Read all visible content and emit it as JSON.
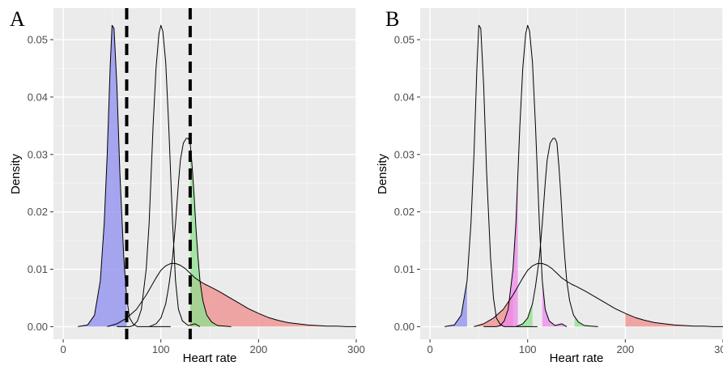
{
  "chart_data": [
    {
      "panel_label": "A",
      "type": "area",
      "xlabel": "Heart rate",
      "ylabel": "Density",
      "xlim": [
        -10,
        300
      ],
      "ylim": [
        -0.0022,
        0.0555
      ],
      "x_ticks": [
        "0",
        "100",
        "200",
        "300"
      ],
      "y_ticks": [
        "0.00",
        "0.01",
        "0.02",
        "0.03",
        "0.04",
        "0.05"
      ],
      "x_tick_values": [
        0,
        100,
        200,
        300
      ],
      "y_tick_values": [
        0,
        0.01,
        0.02,
        0.03,
        0.04,
        0.05
      ],
      "grid": true,
      "background": "#ebebeb",
      "curves": [
        {
          "x": [
            15,
            25,
            32,
            38,
            42,
            45,
            48,
            50,
            52,
            55,
            58,
            62,
            65,
            68,
            72,
            76,
            82,
            90,
            100,
            110
          ],
          "y": [
            0,
            0.0003,
            0.002,
            0.008,
            0.018,
            0.03,
            0.045,
            0.0525,
            0.052,
            0.042,
            0.027,
            0.012,
            0.005,
            0.0015,
            0.0004,
            0,
            0,
            0,
            0,
            0
          ]
        },
        {
          "x": [
            55,
            62,
            68,
            72,
            76,
            80,
            85,
            88,
            92,
            95,
            98,
            100,
            102,
            105,
            108,
            112,
            115,
            118,
            122,
            128,
            135,
            140
          ],
          "y": [
            0,
            0,
            0,
            0.0002,
            0.001,
            0.003,
            0.01,
            0.018,
            0.035,
            0.045,
            0.051,
            0.0525,
            0.0515,
            0.046,
            0.035,
            0.018,
            0.008,
            0.003,
            0.001,
            0.0002,
            0.0005,
            0
          ]
        },
        {
          "x": [
            88,
            95,
            100,
            105,
            108,
            112,
            115,
            118,
            120,
            123,
            126,
            128,
            130,
            132,
            134,
            136,
            138,
            140,
            143,
            147,
            152,
            158,
            165,
            172
          ],
          "y": [
            0,
            0.0005,
            0.0015,
            0.004,
            0.007,
            0.012,
            0.018,
            0.025,
            0.029,
            0.032,
            0.0328,
            0.0328,
            0.032,
            0.028,
            0.023,
            0.017,
            0.012,
            0.008,
            0.0045,
            0.002,
            0.0008,
            0.0002,
            0.0001,
            0
          ]
        },
        {
          "x": [
            45,
            55,
            65,
            75,
            85,
            95,
            100,
            105,
            110,
            115,
            120,
            125,
            130,
            135,
            140,
            145,
            150,
            160,
            170,
            180,
            190,
            200,
            210,
            220,
            230,
            240,
            250,
            260,
            270,
            280,
            290,
            300
          ],
          "y": [
            0,
            0.0005,
            0.0015,
            0.003,
            0.0055,
            0.0085,
            0.0098,
            0.0106,
            0.011,
            0.011,
            0.0107,
            0.0101,
            0.0093,
            0.0085,
            0.0079,
            0.0074,
            0.007,
            0.0061,
            0.0051,
            0.0041,
            0.0031,
            0.0023,
            0.0016,
            0.0011,
            0.0007,
            0.0005,
            0.0003,
            0.0002,
            0.0001,
            0.0001,
            0,
            0
          ]
        }
      ],
      "shaded": [
        {
          "curve": 0,
          "from": 15,
          "to": 65,
          "color": "#8c8cf0"
        },
        {
          "curve": 3,
          "from": 130,
          "to": 300,
          "color": "#f08c8c"
        },
        {
          "curve": 2,
          "from": 130,
          "to": 172,
          "color": "#8ce08c"
        }
      ],
      "cutoffs": [
        65,
        130
      ]
    },
    {
      "panel_label": "B",
      "type": "area",
      "xlabel": "Heart rate",
      "ylabel": "Density",
      "xlim": [
        -10,
        300
      ],
      "ylim": [
        -0.0022,
        0.0555
      ],
      "x_ticks": [
        "0",
        "100",
        "200",
        "300"
      ],
      "y_ticks": [
        "0.00",
        "0.01",
        "0.02",
        "0.03",
        "0.04",
        "0.05"
      ],
      "x_tick_values": [
        0,
        100,
        200,
        300
      ],
      "y_tick_values": [
        0,
        0.01,
        0.02,
        0.03,
        0.04,
        0.05
      ],
      "grid": true,
      "background": "#ebebeb",
      "curves": [
        {
          "x": [
            15,
            25,
            32,
            38,
            42,
            45,
            48,
            50,
            52,
            55,
            58,
            62,
            65,
            68,
            72,
            76,
            82,
            90,
            100,
            110
          ],
          "y": [
            0,
            0.0003,
            0.002,
            0.008,
            0.018,
            0.03,
            0.045,
            0.0525,
            0.052,
            0.042,
            0.027,
            0.012,
            0.005,
            0.0015,
            0.0004,
            0,
            0,
            0,
            0,
            0
          ]
        },
        {
          "x": [
            55,
            62,
            68,
            72,
            76,
            80,
            85,
            88,
            92,
            95,
            98,
            100,
            102,
            105,
            108,
            112,
            115,
            118,
            122,
            128,
            135,
            140
          ],
          "y": [
            0,
            0,
            0,
            0.0002,
            0.001,
            0.003,
            0.01,
            0.018,
            0.035,
            0.045,
            0.051,
            0.0525,
            0.0515,
            0.046,
            0.035,
            0.018,
            0.008,
            0.003,
            0.001,
            0.0002,
            0.0005,
            0
          ]
        },
        {
          "x": [
            88,
            95,
            100,
            105,
            108,
            112,
            115,
            118,
            120,
            123,
            126,
            128,
            130,
            132,
            134,
            136,
            138,
            140,
            143,
            147,
            152,
            158,
            165,
            172
          ],
          "y": [
            0,
            0.0005,
            0.0015,
            0.004,
            0.007,
            0.012,
            0.018,
            0.025,
            0.029,
            0.032,
            0.0328,
            0.0328,
            0.032,
            0.028,
            0.023,
            0.017,
            0.012,
            0.008,
            0.0045,
            0.002,
            0.0008,
            0.0002,
            0.0001,
            0
          ]
        },
        {
          "x": [
            45,
            55,
            65,
            75,
            85,
            95,
            100,
            105,
            110,
            115,
            120,
            125,
            130,
            135,
            140,
            145,
            150,
            160,
            170,
            180,
            190,
            200,
            210,
            220,
            230,
            240,
            250,
            260,
            270,
            280,
            290,
            300
          ],
          "y": [
            0,
            0.0005,
            0.0015,
            0.003,
            0.0055,
            0.0085,
            0.0098,
            0.0106,
            0.011,
            0.011,
            0.0107,
            0.0101,
            0.0093,
            0.0085,
            0.0079,
            0.0074,
            0.007,
            0.0061,
            0.0051,
            0.0041,
            0.0031,
            0.0023,
            0.0016,
            0.0011,
            0.0007,
            0.0005,
            0.0003,
            0.0002,
            0.0001,
            0.0001,
            0,
            0
          ]
        }
      ],
      "shaded": [
        {
          "curve": 0,
          "from": 15,
          "to": 38,
          "color": "#8c8cf0"
        },
        {
          "curve": 3,
          "from": 45,
          "to": 85,
          "color": "#f08c8c"
        },
        {
          "curve": 1,
          "from": 55,
          "to": 90,
          "color": "#ee88ee"
        },
        {
          "curve": 1,
          "from": 115,
          "to": 140,
          "color": "#ee88ee"
        },
        {
          "curve": 2,
          "from": 88,
          "to": 105,
          "color": "#8ce08c"
        },
        {
          "curve": 2,
          "from": 148,
          "to": 172,
          "color": "#8ce08c"
        },
        {
          "curve": 3,
          "from": 200,
          "to": 300,
          "color": "#f08c8c"
        }
      ],
      "cutoffs": []
    }
  ]
}
